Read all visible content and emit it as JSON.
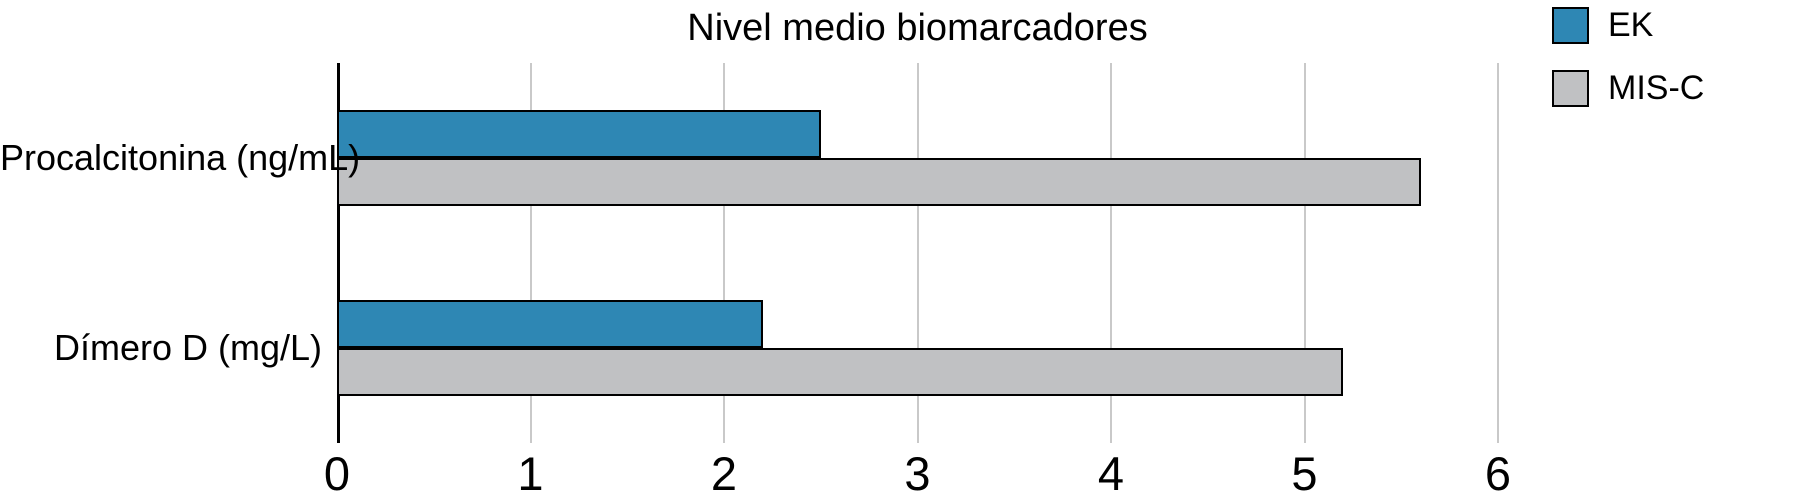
{
  "chart_data": {
    "type": "bar",
    "orientation": "horizontal",
    "title": "Nivel medio biomarcadores",
    "categories": [
      "Procalcitonina (ng/mL)",
      "Dímero D (mg/L)"
    ],
    "series": [
      {
        "name": "EK",
        "color": "#2E87B4",
        "values": [
          2.5,
          2.2
        ]
      },
      {
        "name": "MIS-C",
        "color": "#C0C1C3",
        "values": [
          5.6,
          5.2
        ]
      }
    ],
    "xlim": [
      0,
      6
    ],
    "xticks": [
      0,
      1,
      2,
      3,
      4,
      5,
      6
    ],
    "xlabel": "",
    "ylabel": "",
    "grid": true,
    "gridline_color": "#C9C9C9",
    "axis_color": "#000000",
    "bar_edge_color": "#000000",
    "text_color": "#000000",
    "background": "#FFFFFF",
    "legend_position": "top-right"
  }
}
